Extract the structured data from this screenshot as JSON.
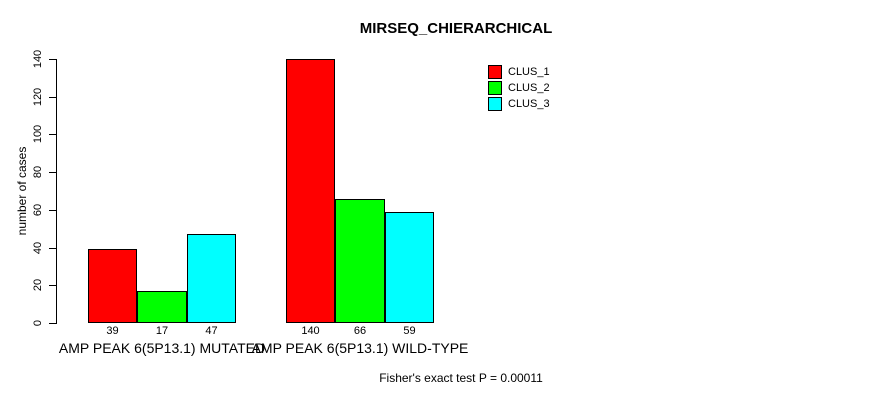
{
  "chart": {
    "title": "MIRSEQ_CHIERARCHICAL",
    "ylabel": "number of cases",
    "footer": "Fisher's exact test P = 0.00011"
  },
  "chart_data": {
    "type": "bar",
    "title": "MIRSEQ_CHIERARCHICAL",
    "xlabel": "",
    "ylabel": "number of cases",
    "categories": [
      "AMP PEAK 6(5P13.1) MUTATED",
      "AMP PEAK 6(5P13.1) WILD-TYPE"
    ],
    "series": [
      {
        "name": "CLUS_1",
        "color": "#ff0000",
        "values": [
          39,
          140
        ]
      },
      {
        "name": "CLUS_2",
        "color": "#00ff00",
        "values": [
          17,
          66
        ]
      },
      {
        "name": "CLUS_3",
        "color": "#00ffff",
        "values": [
          47,
          59
        ]
      }
    ],
    "yticks": [
      0,
      20,
      40,
      60,
      80,
      100,
      120,
      140
    ],
    "ylim": [
      0,
      140
    ],
    "grid": false,
    "legend_position": "top-right",
    "legend_entries": [
      "CLUS_1",
      "CLUS_2",
      "CLUS_3"
    ],
    "bar_value_labels": true,
    "annotation": "Fisher's exact test P = 0.00011"
  }
}
